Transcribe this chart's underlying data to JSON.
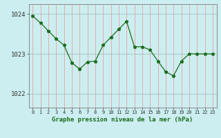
{
  "hours": [
    0,
    1,
    2,
    3,
    4,
    5,
    6,
    7,
    8,
    9,
    10,
    11,
    12,
    13,
    14,
    15,
    16,
    17,
    18,
    19,
    20,
    21,
    22,
    23
  ],
  "pressure": [
    1023.95,
    1023.78,
    1023.58,
    1023.38,
    1023.22,
    1022.78,
    1022.62,
    1022.8,
    1022.82,
    1023.22,
    1023.42,
    1023.62,
    1023.82,
    1023.18,
    1023.18,
    1023.1,
    1022.82,
    1022.55,
    1022.45,
    1022.82,
    1023.0,
    1023.0,
    1023.0,
    1023.0
  ],
  "line_color": "#1a6b1a",
  "marker": "*",
  "bg_color": "#cceef0",
  "grid_color_v": "#e8a0a0",
  "grid_color_h": "#a0c0c0",
  "ylabel_values": [
    1022,
    1023,
    1024
  ],
  "xlabel_label": "Graphe pression niveau de la mer (hPa)",
  "ylim_min": 1021.65,
  "ylim_max": 1024.25
}
